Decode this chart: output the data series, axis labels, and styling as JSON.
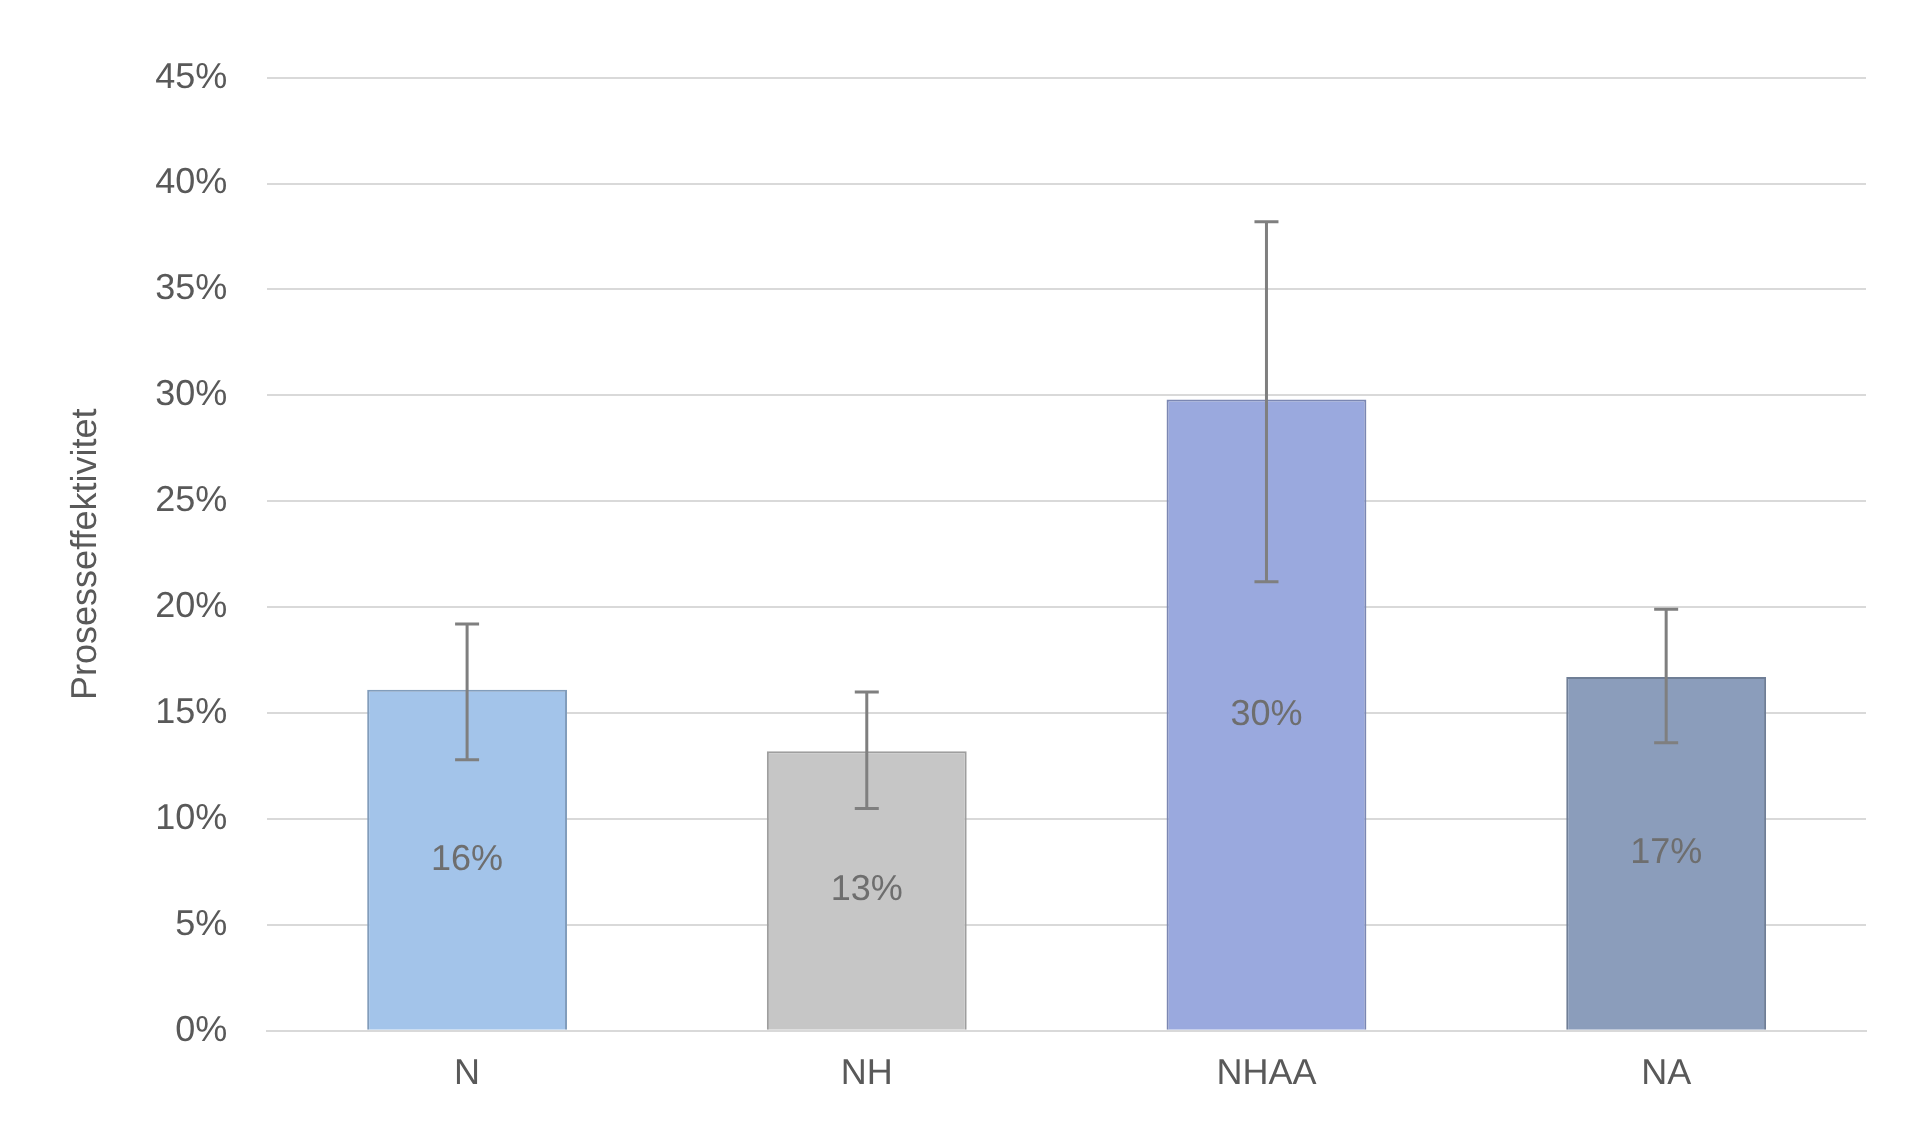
{
  "chart_data": {
    "type": "bar",
    "ylabel": "Prosesseffektivitet",
    "categories": [
      "N",
      "NH",
      "NHAA",
      "NA"
    ],
    "values": [
      16.1,
      13.2,
      29.8,
      16.7
    ],
    "colors": [
      "#a3c4ea",
      "#c6c6c6",
      "#9aa9de",
      "#8b9dbb"
    ],
    "errors": [
      [
        12.8,
        19.2
      ],
      [
        10.5,
        16.0
      ],
      [
        21.2,
        38.2
      ],
      [
        13.6,
        19.9
      ]
    ],
    "value_labels": [
      "16%",
      "13%",
      "30%",
      "17%"
    ],
    "ylim": [
      0,
      45
    ],
    "yticks": [
      {
        "value": 0,
        "label": "0%"
      },
      {
        "value": 5,
        "label": "5%"
      },
      {
        "value": 10,
        "label": "10%"
      },
      {
        "value": 15,
        "label": "15%"
      },
      {
        "value": 20,
        "label": "20%"
      },
      {
        "value": 25,
        "label": "25%"
      },
      {
        "value": 30,
        "label": "30%"
      },
      {
        "value": 35,
        "label": "35%"
      },
      {
        "value": 40,
        "label": "40%"
      },
      {
        "value": 45,
        "label": "45%"
      }
    ],
    "grid": "y",
    "legend": false
  }
}
